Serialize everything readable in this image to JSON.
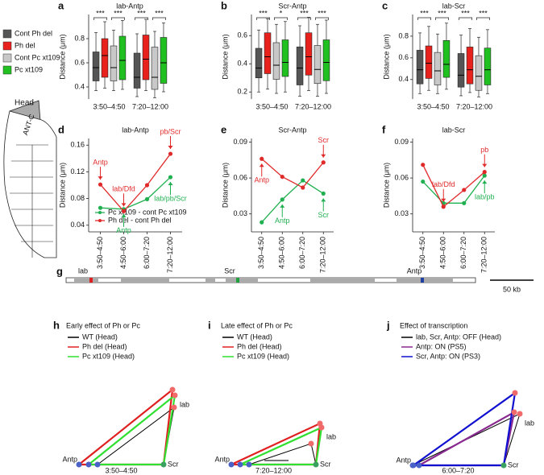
{
  "chart_data": [
    {
      "type": "box",
      "panel": "a",
      "title": "lab-Antp",
      "ylabel": "Distance (μm)",
      "categories": [
        "3:50–4:50",
        "7:20–12:00"
      ],
      "ylim": [
        0.3,
        1.0
      ],
      "yticks": [
        0.4,
        0.6,
        0.8
      ],
      "significance": [
        [
          "***",
          "***"
        ],
        [
          "***",
          "***"
        ]
      ],
      "series": [
        {
          "name": "Cont Ph del",
          "color": "#555555",
          "values": [
            [
              0.37,
              0.45,
              0.56,
              0.69,
              0.85
            ],
            [
              0.32,
              0.39,
              0.48,
              0.68,
              0.84
            ]
          ]
        },
        {
          "name": "Ph del",
          "color": "#e8211d",
          "values": [
            [
              0.39,
              0.48,
              0.66,
              0.8,
              0.94
            ],
            [
              0.37,
              0.46,
              0.63,
              0.83,
              0.96
            ]
          ]
        },
        {
          "name": "Cont Pc xt109",
          "color": "#c8c8c8",
          "values": [
            [
              0.37,
              0.45,
              0.56,
              0.74,
              0.87
            ],
            [
              0.31,
              0.38,
              0.48,
              0.73,
              0.86
            ]
          ]
        },
        {
          "name": "Pc xt109",
          "color": "#20c020",
          "values": [
            [
              0.38,
              0.46,
              0.62,
              0.82,
              0.95
            ],
            [
              0.36,
              0.43,
              0.6,
              0.81,
              0.93
            ]
          ]
        }
      ]
    },
    {
      "type": "box",
      "panel": "b",
      "title": "Scr-Antp",
      "ylabel": "Distance (μm)",
      "categories": [
        "3:50–4:50",
        "7:20–12:00"
      ],
      "ylim": [
        0.15,
        0.75
      ],
      "yticks": [
        0.2,
        0.4,
        0.6
      ],
      "significance": [
        [
          "***",
          "*"
        ],
        [
          "***",
          "***"
        ]
      ],
      "series": [
        {
          "color": "#555555",
          "values": [
            [
              0.2,
              0.3,
              0.37,
              0.51,
              0.64
            ],
            [
              0.17,
              0.25,
              0.37,
              0.52,
              0.67
            ]
          ]
        },
        {
          "color": "#e8211d",
          "values": [
            [
              0.22,
              0.33,
              0.45,
              0.62,
              0.72
            ],
            [
              0.21,
              0.32,
              0.45,
              0.62,
              0.73
            ]
          ]
        },
        {
          "color": "#c8c8c8",
          "values": [
            [
              0.19,
              0.29,
              0.39,
              0.55,
              0.68
            ],
            [
              0.17,
              0.26,
              0.36,
              0.53,
              0.68
            ]
          ]
        },
        {
          "color": "#20c020",
          "values": [
            [
              0.2,
              0.31,
              0.41,
              0.57,
              0.7
            ],
            [
              0.19,
              0.28,
              0.41,
              0.57,
              0.71
            ]
          ]
        }
      ]
    },
    {
      "type": "box",
      "panel": "c",
      "title": "lab-Scr",
      "ylabel": "Distance (μm)",
      "categories": [
        "3:50–4:50",
        "7:20–12:00"
      ],
      "ylim": [
        0.22,
        1.0
      ],
      "yticks": [
        0.4,
        0.6,
        0.8
      ],
      "significance": [
        [
          "***",
          "***"
        ],
        [
          "***",
          "***"
        ]
      ],
      "series": [
        {
          "color": "#555555",
          "values": [
            [
              0.27,
              0.36,
              0.49,
              0.67,
              0.83
            ],
            [
              0.25,
              0.33,
              0.44,
              0.64,
              0.81
            ]
          ]
        },
        {
          "color": "#e8211d",
          "values": [
            [
              0.3,
              0.41,
              0.55,
              0.71,
              0.89
            ],
            [
              0.28,
              0.36,
              0.49,
              0.7,
              0.87
            ]
          ]
        },
        {
          "color": "#c8c8c8",
          "values": [
            [
              0.27,
              0.35,
              0.48,
              0.65,
              0.82
            ],
            [
              0.24,
              0.3,
              0.43,
              0.62,
              0.79
            ]
          ]
        },
        {
          "color": "#20c020",
          "values": [
            [
              0.31,
              0.42,
              0.54,
              0.76,
              0.92
            ],
            [
              0.27,
              0.35,
              0.49,
              0.69,
              0.86
            ]
          ]
        }
      ]
    },
    {
      "type": "line",
      "panel": "d",
      "title": "lab-Antp",
      "ylabel": "Distance (μm)",
      "categories": [
        "3:50–4:50",
        "4:50–6:00",
        "6:00–7:20",
        "7:20–12:00"
      ],
      "ylim": [
        0.03,
        0.17
      ],
      "yticks": [
        0.04,
        0.08,
        0.12,
        0.16
      ],
      "series": [
        {
          "name": "Pc xt109 - cont Pc xt109",
          "color": "#20b050",
          "values": [
            0.066,
            0.064,
            0.079,
            0.112
          ]
        },
        {
          "name": "Ph del - cont Ph del",
          "color": "#e02a2a",
          "values": [
            0.101,
            0.061,
            0.1,
            0.147
          ]
        }
      ],
      "annotations": [
        {
          "text": "Antp",
          "series": 1,
          "index": 0,
          "position": "above"
        },
        {
          "text": "lab/Dfd",
          "series": 1,
          "index": 1,
          "position": "above"
        },
        {
          "text": "pb/Scr",
          "series": 1,
          "index": 3,
          "position": "above"
        },
        {
          "text": "Antp",
          "series": 0,
          "index": 1,
          "position": "below"
        },
        {
          "text": "lab/pb/Scr",
          "series": 0,
          "index": 3,
          "position": "below"
        }
      ]
    },
    {
      "type": "line",
      "panel": "e",
      "title": "Scr-Antp",
      "ylabel": "Distance (μm)",
      "categories": [
        "3:50–4:50",
        "4:50–6:00",
        "6:00–7:20",
        "7:20–12:00"
      ],
      "ylim": [
        0.015,
        0.093
      ],
      "yticks": [
        0.03,
        0.06,
        0.09
      ],
      "series": [
        {
          "color": "#20b050",
          "values": [
            0.023,
            0.042,
            0.058,
            0.047
          ]
        },
        {
          "color": "#e02a2a",
          "values": [
            0.076,
            0.061,
            0.052,
            0.073
          ]
        }
      ],
      "annotations": [
        {
          "text": "Antp",
          "series": 1,
          "index": 0,
          "position": "below"
        },
        {
          "text": "Antp",
          "series": 0,
          "index": 1,
          "position": "below"
        },
        {
          "text": "Scr",
          "series": 1,
          "index": 3,
          "position": "above"
        },
        {
          "text": "Scr",
          "series": 0,
          "index": 3,
          "position": "below"
        }
      ]
    },
    {
      "type": "line",
      "panel": "f",
      "title": "lab-Scr",
      "ylabel": "Distance (μm)",
      "categories": [
        "3:50–4:50",
        "4:50–6:00",
        "6:00–7:20",
        "7:20–12:00"
      ],
      "ylim": [
        0.015,
        0.093
      ],
      "yticks": [
        0.03,
        0.06,
        0.09
      ],
      "series": [
        {
          "color": "#20b050",
          "values": [
            0.057,
            0.039,
            0.039,
            0.062
          ]
        },
        {
          "color": "#e02a2a",
          "values": [
            0.071,
            0.036,
            0.05,
            0.065
          ]
        }
      ],
      "annotations": [
        {
          "text": "lab/Dfd",
          "series": 1,
          "index": 1,
          "position": "above"
        },
        {
          "text": "pb",
          "series": 1,
          "index": 3,
          "position": "above"
        },
        {
          "text": "lab/pb",
          "series": 0,
          "index": 3,
          "position": "below"
        }
      ]
    }
  ],
  "head": {
    "label": "Head",
    "region": "ANT-C"
  },
  "track": {
    "panel": "g",
    "genes": [
      {
        "name": "lab",
        "color": "#e02020"
      },
      {
        "name": "Scr",
        "color": "#20a040"
      },
      {
        "name": "Antp",
        "color": "#2040a0"
      }
    ],
    "scale": "50 kb"
  },
  "models": [
    {
      "panel": "h",
      "title": "Early effect of Ph or Pc",
      "time": "3:50–4:50",
      "nodes": [
        "Antp",
        "Scr",
        "lab"
      ],
      "legend": [
        {
          "name": "WT (Head)",
          "color": "#000000"
        },
        {
          "name": "Ph del (Head)",
          "color": "#e02020"
        },
        {
          "name": "Pc xt109 (Head)",
          "color": "#30e030"
        }
      ]
    },
    {
      "panel": "i",
      "title": "Late effect of Ph or Pc",
      "time": "7:20–12:00",
      "nodes": [
        "Antp",
        "Scr",
        "lab"
      ],
      "legend": [
        {
          "name": "WT (Head)",
          "color": "#000000"
        },
        {
          "name": "Ph del (Head)",
          "color": "#e02020"
        },
        {
          "name": "Pc xt109 (Head)",
          "color": "#30e030"
        }
      ]
    },
    {
      "panel": "j",
      "title": "Effect of transcription",
      "time": "6:00–7:20",
      "nodes": [
        "Antp",
        "Scr",
        "lab"
      ],
      "legend": [
        {
          "name": "lab, Scr, Antp: OFF (Head)",
          "color": "#000000"
        },
        {
          "name": "Antp: ON (PS5)",
          "color": "#8a2a90"
        },
        {
          "name": "Scr, Antp: ON (PS3)",
          "color": "#1010d0"
        }
      ]
    }
  ]
}
